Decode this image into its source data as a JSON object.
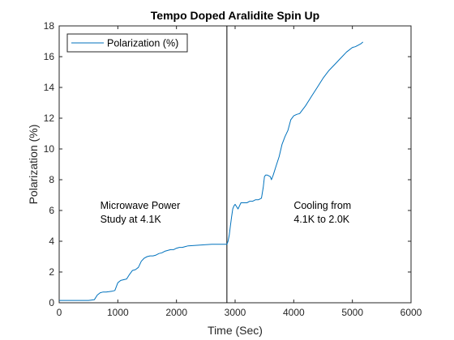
{
  "chart_data": {
    "type": "line",
    "title": "Tempo Doped Aralidite Spin Up",
    "xlabel": "Time (Sec)",
    "ylabel": "Polarization (%)",
    "xlim": [
      0,
      6000
    ],
    "ylim": [
      0,
      18
    ],
    "xticks": [
      0,
      1000,
      2000,
      3000,
      4000,
      5000,
      6000
    ],
    "yticks": [
      0,
      2,
      4,
      6,
      8,
      10,
      12,
      14,
      16,
      18
    ],
    "grid": false,
    "legend": {
      "location": "top-left",
      "entries": [
        "Polarization (%)"
      ]
    },
    "series": [
      {
        "name": "Polarization (%)",
        "color": "#0072BD",
        "x": [
          0,
          100,
          200,
          300,
          400,
          500,
          600,
          650,
          700,
          750,
          800,
          850,
          900,
          950,
          1000,
          1050,
          1100,
          1150,
          1200,
          1250,
          1300,
          1350,
          1400,
          1450,
          1500,
          1550,
          1600,
          1650,
          1700,
          1750,
          1800,
          1850,
          1900,
          1950,
          2000,
          2050,
          2100,
          2150,
          2200,
          2300,
          2400,
          2500,
          2600,
          2700,
          2800,
          2860,
          2880,
          2900,
          2920,
          2940,
          2960,
          2980,
          3000,
          3050,
          3100,
          3150,
          3200,
          3250,
          3300,
          3350,
          3400,
          3450,
          3480,
          3500,
          3520,
          3550,
          3600,
          3620,
          3650,
          3700,
          3750,
          3800,
          3850,
          3900,
          3950,
          4000,
          4050,
          4100,
          4200,
          4300,
          4400,
          4500,
          4600,
          4700,
          4800,
          4900,
          5000,
          5050,
          5100,
          5150,
          5180
        ],
        "y": [
          0.15,
          0.15,
          0.15,
          0.15,
          0.15,
          0.15,
          0.2,
          0.5,
          0.65,
          0.7,
          0.7,
          0.72,
          0.75,
          0.8,
          1.3,
          1.45,
          1.5,
          1.55,
          1.85,
          2.1,
          2.15,
          2.3,
          2.7,
          2.9,
          3.0,
          3.05,
          3.05,
          3.1,
          3.2,
          3.25,
          3.35,
          3.4,
          3.45,
          3.45,
          3.55,
          3.6,
          3.6,
          3.65,
          3.7,
          3.72,
          3.75,
          3.78,
          3.8,
          3.8,
          3.8,
          3.8,
          4.0,
          4.4,
          5.0,
          5.6,
          6.1,
          6.3,
          6.4,
          6.1,
          6.5,
          6.5,
          6.5,
          6.6,
          6.6,
          6.7,
          6.7,
          6.8,
          7.5,
          8.2,
          8.3,
          8.3,
          8.2,
          8.0,
          8.3,
          8.9,
          9.5,
          10.3,
          10.8,
          11.2,
          11.9,
          12.15,
          12.25,
          12.3,
          12.8,
          13.4,
          14.0,
          14.6,
          15.1,
          15.5,
          15.9,
          16.3,
          16.6,
          16.65,
          16.75,
          16.85,
          16.95
        ]
      }
    ],
    "vertical_line": {
      "x": 2860,
      "color": "#000000"
    },
    "annotations": [
      {
        "lines": [
          "Microwave Power",
          "Study at 4.1K"
        ],
        "x": 700,
        "y": 6.1
      },
      {
        "lines": [
          "Cooling from",
          "4.1K to 2.0K"
        ],
        "x": 4000,
        "y": 6.1
      }
    ]
  }
}
